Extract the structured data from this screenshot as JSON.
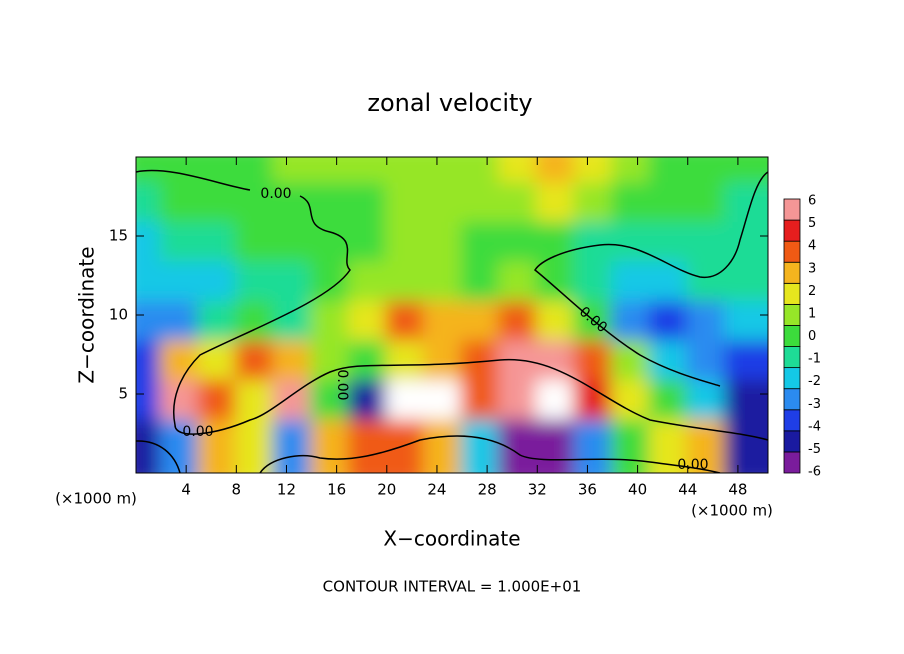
{
  "chart_data": {
    "type": "contour",
    "title": "zonal velocity",
    "xlabel": "X−coordinate",
    "ylabel": "Z−coordinate",
    "xunit": "(×1000 m)",
    "yunit": "(×1000 m)",
    "footnote": "CONTOUR INTERVAL = 1.000E+01",
    "contour_label": "0.00",
    "xlim": [
      0,
      50.4
    ],
    "ylim": [
      0,
      20
    ],
    "xticks": [
      4,
      8,
      12,
      16,
      20,
      24,
      28,
      32,
      36,
      40,
      44,
      48
    ],
    "yticks": [
      5,
      10,
      15
    ],
    "x": [
      1.5,
      4.5,
      7.5,
      10.5,
      13.5,
      16.5,
      19.5,
      22.5,
      25.5,
      28.5,
      31.5,
      34.5,
      37.5,
      40.5,
      43.5,
      46.5,
      49.5
    ],
    "y": [
      18.75,
      16.25,
      13.75,
      11.25,
      8.75,
      6.25,
      3.75,
      1.25
    ],
    "z": [
      [
        0,
        0.5,
        0.5,
        0.5,
        1,
        1,
        1.5,
        1.5,
        1,
        1,
        2,
        3,
        2.5,
        1,
        0.5,
        0.5,
        0
      ],
      [
        -0.5,
        0,
        0.5,
        0.5,
        0.5,
        0.5,
        0.5,
        1,
        1,
        1,
        1.5,
        2.5,
        1.5,
        0.5,
        0,
        0,
        -0.5
      ],
      [
        -1.5,
        -1,
        -0.5,
        0,
        0.5,
        0.5,
        0.5,
        1.5,
        1,
        0.5,
        0.5,
        0,
        -0.5,
        -1,
        -1,
        -0.5,
        -0.5
      ],
      [
        -2,
        -2,
        -1.5,
        -1,
        -1,
        0,
        1,
        1,
        1,
        0.5,
        1,
        0,
        -1,
        -2,
        -2,
        -1,
        -1
      ],
      [
        -3,
        -2.5,
        -1,
        0,
        -1,
        1,
        2,
        4,
        3,
        3,
        4,
        2,
        0,
        -3,
        -4,
        -3,
        -2
      ],
      [
        -4,
        3,
        2,
        4,
        3,
        1,
        0,
        2,
        3,
        4,
        6,
        6,
        4,
        1,
        -2,
        -3,
        -4
      ],
      [
        -4,
        6,
        4,
        2,
        6,
        0,
        -5,
        7,
        7,
        4,
        6,
        7,
        5,
        2,
        0,
        -2,
        -5
      ],
      [
        -5,
        -3,
        3,
        2,
        -3,
        3,
        4,
        4,
        3,
        -2,
        -6,
        -6,
        -3,
        0,
        2,
        3,
        -5
      ]
    ],
    "colorbar": {
      "levels": [
        -6,
        -5,
        -4,
        -3,
        -2,
        -1,
        0,
        1,
        2,
        3,
        4,
        5,
        6
      ],
      "colors": [
        "#7a1c9c",
        "#1a1aa0",
        "#1f3ee6",
        "#2b8bf0",
        "#14c8e6",
        "#1edc96",
        "#3cdc3c",
        "#96e628",
        "#e6e61e",
        "#f5b41e",
        "#f05a14",
        "#e61e1e",
        "#f59696"
      ],
      "over_color": "#ffffff"
    }
  }
}
